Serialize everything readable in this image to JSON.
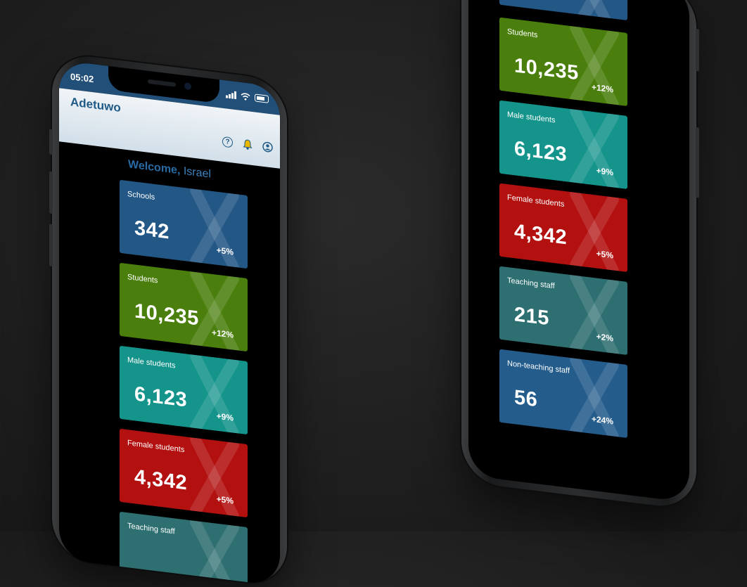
{
  "status": {
    "time": "05:02"
  },
  "app": {
    "title": "Adetuwo"
  },
  "welcome": {
    "greeting": "Welcome,",
    "name": "Israel"
  },
  "icons": [
    "help-circle-icon",
    "notification-bell-icon",
    "user-account-icon",
    "cellular-signal-icon",
    "wifi-icon",
    "battery-icon"
  ],
  "colors": {
    "status_bar": "#224f78",
    "app_bar": "#d2dfe9",
    "schools": "#235785",
    "students": "#4a7f0d",
    "male_students": "#14948b",
    "female_students": "#b31010",
    "teaching_staff": "#2e6f71",
    "non_teaching_staff": "#245c8c"
  },
  "left_phone": {
    "cards": [
      {
        "label": "Schools",
        "value": "342",
        "change": "+5%",
        "color": "#235785"
      },
      {
        "label": "Students",
        "value": "10,235",
        "change": "+12%",
        "color": "#4a7f0d"
      },
      {
        "label": "Male students",
        "value": "6,123",
        "change": "+9%",
        "color": "#14948b"
      },
      {
        "label": "Female students",
        "value": "4,342",
        "change": "+5%",
        "color": "#b31010"
      },
      {
        "label": "Teaching staff",
        "value": "",
        "change": "",
        "color": "#2e6f71"
      }
    ]
  },
  "right_phone": {
    "cards": [
      {
        "label": "",
        "value": "",
        "change": "",
        "color": "#235785"
      },
      {
        "label": "Students",
        "value": "10,235",
        "change": "+12%",
        "color": "#4a7f0d"
      },
      {
        "label": "Male students",
        "value": "6,123",
        "change": "+9%",
        "color": "#14948b"
      },
      {
        "label": "Female students",
        "value": "4,342",
        "change": "+5%",
        "color": "#b31010"
      },
      {
        "label": "Teaching staff",
        "value": "215",
        "change": "+2%",
        "color": "#2e6f71"
      },
      {
        "label": "Non-teaching staff",
        "value": "56",
        "change": "+24%",
        "color": "#245c8c"
      }
    ]
  }
}
